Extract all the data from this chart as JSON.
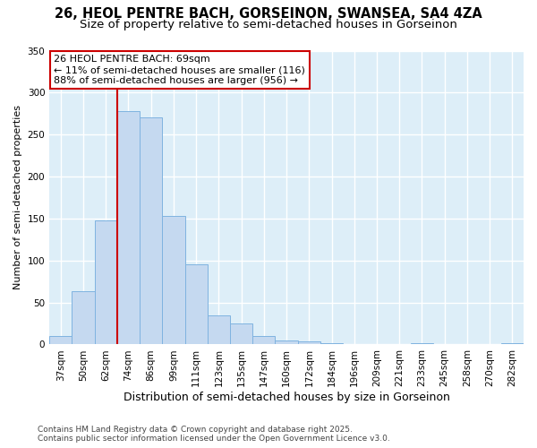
{
  "title_line1": "26, HEOL PENTRE BACH, GORSEINON, SWANSEA, SA4 4ZA",
  "title_line2": "Size of property relative to semi-detached houses in Gorseinon",
  "xlabel": "Distribution of semi-detached houses by size in Gorseinon",
  "ylabel": "Number of semi-detached properties",
  "categories": [
    "37sqm",
    "50sqm",
    "62sqm",
    "74sqm",
    "86sqm",
    "99sqm",
    "111sqm",
    "123sqm",
    "135sqm",
    "147sqm",
    "160sqm",
    "172sqm",
    "184sqm",
    "196sqm",
    "209sqm",
    "221sqm",
    "233sqm",
    "245sqm",
    "258sqm",
    "270sqm",
    "282sqm"
  ],
  "values": [
    10,
    63,
    148,
    278,
    270,
    153,
    95,
    35,
    25,
    10,
    5,
    4,
    2,
    1,
    1,
    0,
    2,
    0,
    0,
    0,
    2
  ],
  "bar_color": "#c5d9f0",
  "bar_edge_color": "#7fb3e0",
  "vline_color": "#cc0000",
  "vline_x": 2.5,
  "annotation_title": "26 HEOL PENTRE BACH: 69sqm",
  "annotation_line1": "← 11% of semi-detached houses are smaller (116)",
  "annotation_line2": "88% of semi-detached houses are larger (956) →",
  "annotation_box_bg": "#ffffff",
  "annotation_box_edge": "#cc0000",
  "ylim_max": 350,
  "fig_background": "#ffffff",
  "plot_background": "#ddeef8",
  "grid_color": "#ffffff",
  "title_fontsize": 10.5,
  "subtitle_fontsize": 9.5,
  "xlabel_fontsize": 9,
  "ylabel_fontsize": 8,
  "tick_fontsize": 7.5,
  "annot_fontsize": 8,
  "footer_fontsize": 6.5,
  "footer_line1": "Contains HM Land Registry data © Crown copyright and database right 2025.",
  "footer_line2": "Contains public sector information licensed under the Open Government Licence v3.0."
}
